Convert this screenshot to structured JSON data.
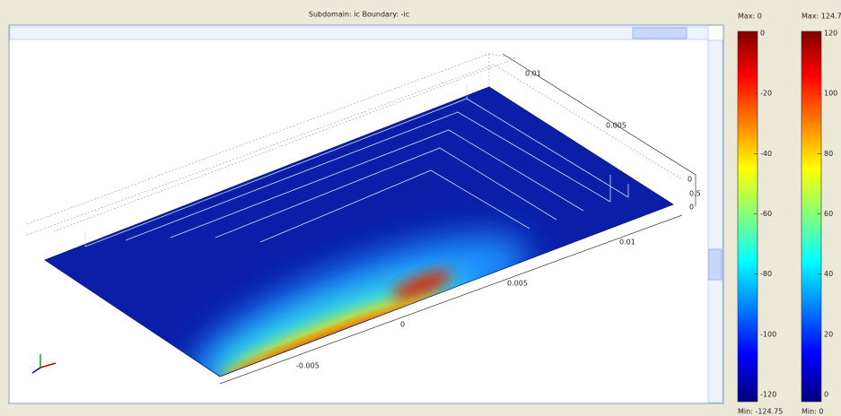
{
  "window": {
    "title": "Subdomain: ic  Boundary: -ic"
  },
  "axes": {
    "y_labels": [
      "0.01",
      "0.005",
      "0",
      "0.5",
      "0"
    ],
    "x_labels": [
      "0.01",
      "0.005",
      "0",
      "-0.005"
    ]
  },
  "colorbars": [
    {
      "max": "Max: 0",
      "min": "Min: -124.75",
      "ticks": [
        "0",
        "-20",
        "-40",
        "-60",
        "-80",
        "-100",
        "-120"
      ]
    },
    {
      "max": "Max: 124.7",
      "min": "Min: 0",
      "ticks": [
        "120",
        "100",
        "80",
        "60",
        "40",
        "20",
        "0"
      ]
    }
  ]
}
